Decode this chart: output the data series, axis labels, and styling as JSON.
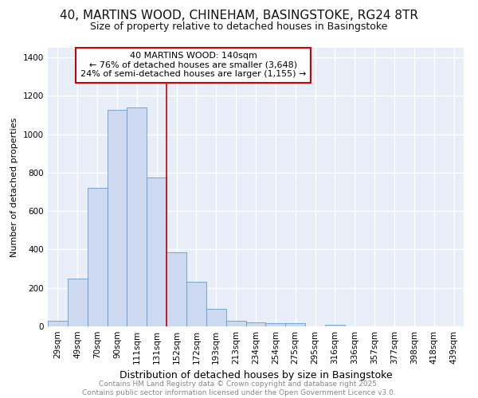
{
  "title_line1": "40, MARTINS WOOD, CHINEHAM, BASINGSTOKE, RG24 8TR",
  "title_line2": "Size of property relative to detached houses in Basingstoke",
  "xlabel": "Distribution of detached houses by size in Basingstoke",
  "ylabel": "Number of detached properties",
  "categories": [
    "29sqm",
    "49sqm",
    "70sqm",
    "90sqm",
    "111sqm",
    "131sqm",
    "152sqm",
    "172sqm",
    "193sqm",
    "213sqm",
    "234sqm",
    "254sqm",
    "275sqm",
    "295sqm",
    "316sqm",
    "336sqm",
    "357sqm",
    "377sqm",
    "398sqm",
    "418sqm",
    "439sqm"
  ],
  "values": [
    28,
    248,
    720,
    1128,
    1138,
    775,
    385,
    232,
    90,
    28,
    22,
    17,
    15,
    0,
    10,
    0,
    0,
    0,
    0,
    0,
    0
  ],
  "bar_color": "#ccd9f0",
  "bar_edge_color": "#6699cc",
  "background_color": "#ffffff",
  "plot_bg_color": "#e8eef8",
  "grid_color": "#ffffff",
  "annotation_box_text": "40 MARTINS WOOD: 140sqm\n← 76% of detached houses are smaller (3,648)\n24% of semi-detached houses are larger (1,155) →",
  "annotation_box_color": "#ffffff",
  "annotation_box_edge_color": "#cc0000",
  "vertical_line_color": "#cc0000",
  "ylim": [
    0,
    1450
  ],
  "yticks": [
    0,
    200,
    400,
    600,
    800,
    1000,
    1200,
    1400
  ],
  "footer_line1": "Contains HM Land Registry data © Crown copyright and database right 2025.",
  "footer_line2": "Contains public sector information licensed under the Open Government Licence v3.0.",
  "footer_color": "#888888",
  "title_fontsize": 11,
  "subtitle_fontsize": 9,
  "xlabel_fontsize": 9,
  "ylabel_fontsize": 8,
  "tick_fontsize": 7.5,
  "annotation_fontsize": 8,
  "footer_fontsize": 6.5
}
